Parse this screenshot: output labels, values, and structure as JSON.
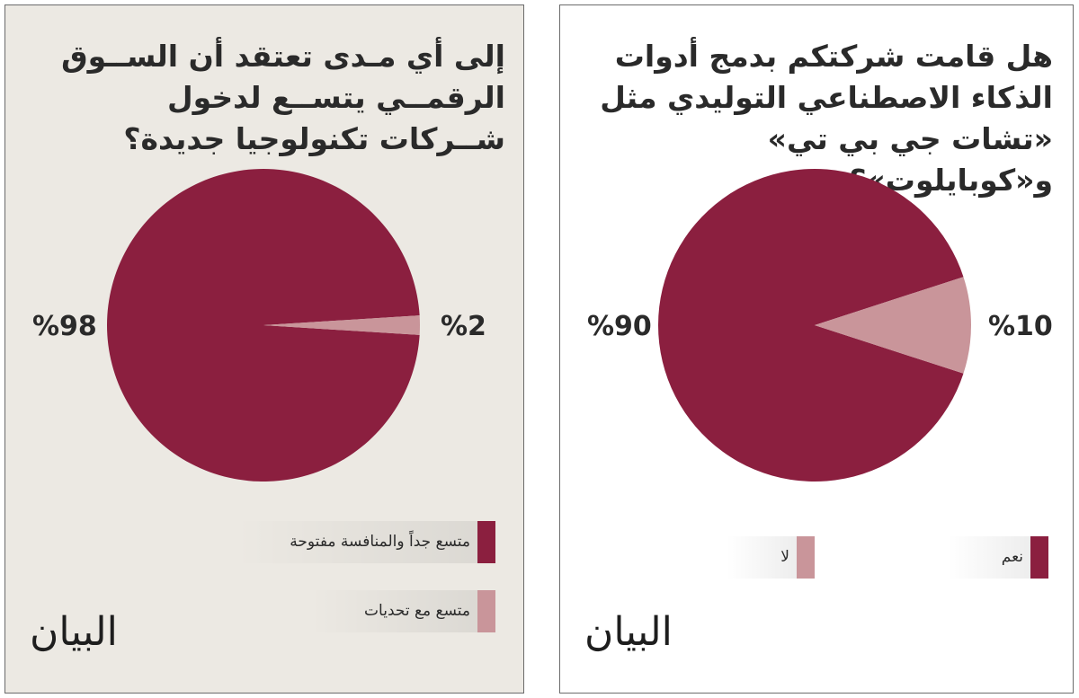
{
  "colors": {
    "primary": "#8b1f3f",
    "secondary": "#c9959a"
  },
  "logo_text": "البيان",
  "panels": {
    "left": {
      "question": "إلى أي مـدى تعتقد أن الســوق الرقمــي يتســع لدخول شــركات تكنولوجيا جديدة؟",
      "legend": [
        "متسع جداً والمنافسة مفتوحة",
        "متسع مع تحديات"
      ],
      "labels": {
        "big": "%98",
        "small": "%2"
      }
    },
    "right": {
      "question": "هل قامت شركتكم بدمج أدوات الذكاء الاصطناعي التوليدي مثل «تشات جي بي تي» و«كوبايلوت»؟",
      "legend": [
        "نعم",
        "لا"
      ],
      "labels": {
        "big": "%90",
        "small": "%10"
      }
    }
  },
  "chart_data": [
    {
      "type": "pie",
      "title": "إلى أي مـدى تعتقد أن الســوق الرقمــي يتســع لدخول شــركات تكنولوجيا جديدة؟",
      "categories": [
        "متسع جداً والمنافسة مفتوحة",
        "متسع مع تحديات"
      ],
      "values": [
        98,
        2
      ],
      "legend": "bottom"
    },
    {
      "type": "pie",
      "title": "هل قامت شركتكم بدمج أدوات الذكاء الاصطناعي التوليدي مثل «تشات جي بي تي» و«كوبايلوت»؟",
      "categories": [
        "نعم",
        "لا"
      ],
      "values": [
        90,
        10
      ],
      "legend": "bottom"
    }
  ]
}
